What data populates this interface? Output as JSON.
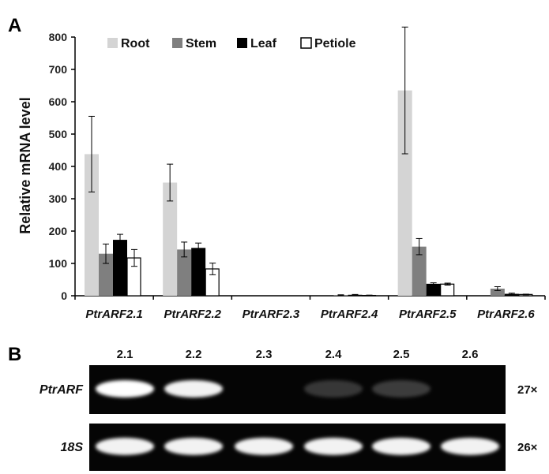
{
  "panel_a_label": "A",
  "panel_b_label": "B",
  "chart_data": {
    "type": "bar",
    "ylabel": "Relative mRNA level",
    "xlabel": "",
    "ylim": [
      0,
      800
    ],
    "yticks": [
      0,
      100,
      200,
      300,
      400,
      500,
      600,
      700,
      800
    ],
    "categories": [
      "PtrARF2.1",
      "PtrARF2.2",
      "PtrARF2.3",
      "PtrARF2.4",
      "PtrARF2.5",
      "PtrARF2.6"
    ],
    "legend_position": "top-center",
    "grid": false,
    "series": [
      {
        "name": "Root",
        "color": "#d4d4d4",
        "outline": false,
        "values": [
          438,
          350,
          0,
          0,
          635,
          0
        ],
        "errors": [
          117,
          57,
          0,
          0,
          196,
          0
        ]
      },
      {
        "name": "Stem",
        "color": "#7f7f7f",
        "outline": false,
        "values": [
          130,
          143,
          0,
          2,
          152,
          22
        ],
        "errors": [
          30,
          23,
          0,
          1,
          25,
          6
        ]
      },
      {
        "name": "Leaf",
        "color": "#000000",
        "outline": false,
        "values": [
          173,
          148,
          0,
          3,
          37,
          6
        ],
        "errors": [
          17,
          15,
          0,
          1,
          3,
          2
        ]
      },
      {
        "name": "Petiole",
        "color": "#ffffff",
        "outline": true,
        "values": [
          117,
          83,
          0,
          1,
          36,
          4
        ],
        "errors": [
          26,
          18,
          0,
          1,
          3,
          1
        ]
      }
    ]
  },
  "gel": {
    "lanes": [
      "2.1",
      "2.2",
      "2.3",
      "2.4",
      "2.5",
      "2.6"
    ],
    "rows": [
      {
        "label": "PtrARF",
        "cycles": "27×",
        "intensities": [
          1.0,
          0.95,
          0.0,
          0.2,
          0.22,
          0.0
        ]
      },
      {
        "label": "18S",
        "cycles": "26×",
        "intensities": [
          0.95,
          0.95,
          0.95,
          0.95,
          0.95,
          0.95
        ]
      }
    ]
  }
}
